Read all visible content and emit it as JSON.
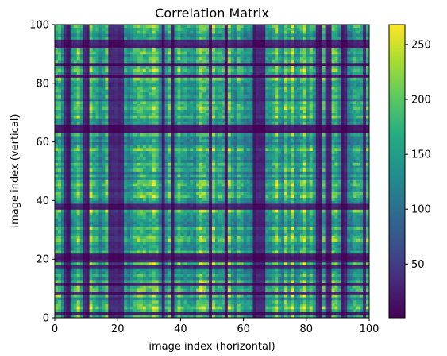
{
  "chart_data": {
    "type": "heatmap",
    "title": "Correlation Matrix",
    "xlabel": "image index (horizontal)",
    "ylabel": "image index (vertical)",
    "xlim": [
      0,
      100
    ],
    "ylim": [
      0,
      100
    ],
    "x_ticks": [
      "0",
      "20",
      "40",
      "60",
      "80",
      "100"
    ],
    "y_ticks": [
      "0",
      "20",
      "40",
      "60",
      "80",
      "100"
    ],
    "colormap": "viridis",
    "grid": false,
    "colorbar": {
      "placement": "right",
      "range": [
        1,
        268
      ],
      "ticks": [
        "50",
        "100",
        "150",
        "200",
        "250"
      ]
    },
    "grid_size": 100,
    "low_indices_x": [
      3,
      4,
      9,
      10,
      17,
      18,
      19,
      20,
      21,
      34,
      37,
      49,
      54,
      63,
      64,
      65,
      66,
      83,
      84,
      86,
      87,
      91,
      92,
      98
    ],
    "low_indices_y": [
      1,
      8,
      11,
      17,
      19,
      20,
      21,
      37,
      38,
      63,
      64,
      65,
      82,
      86,
      92,
      93,
      94
    ]
  }
}
